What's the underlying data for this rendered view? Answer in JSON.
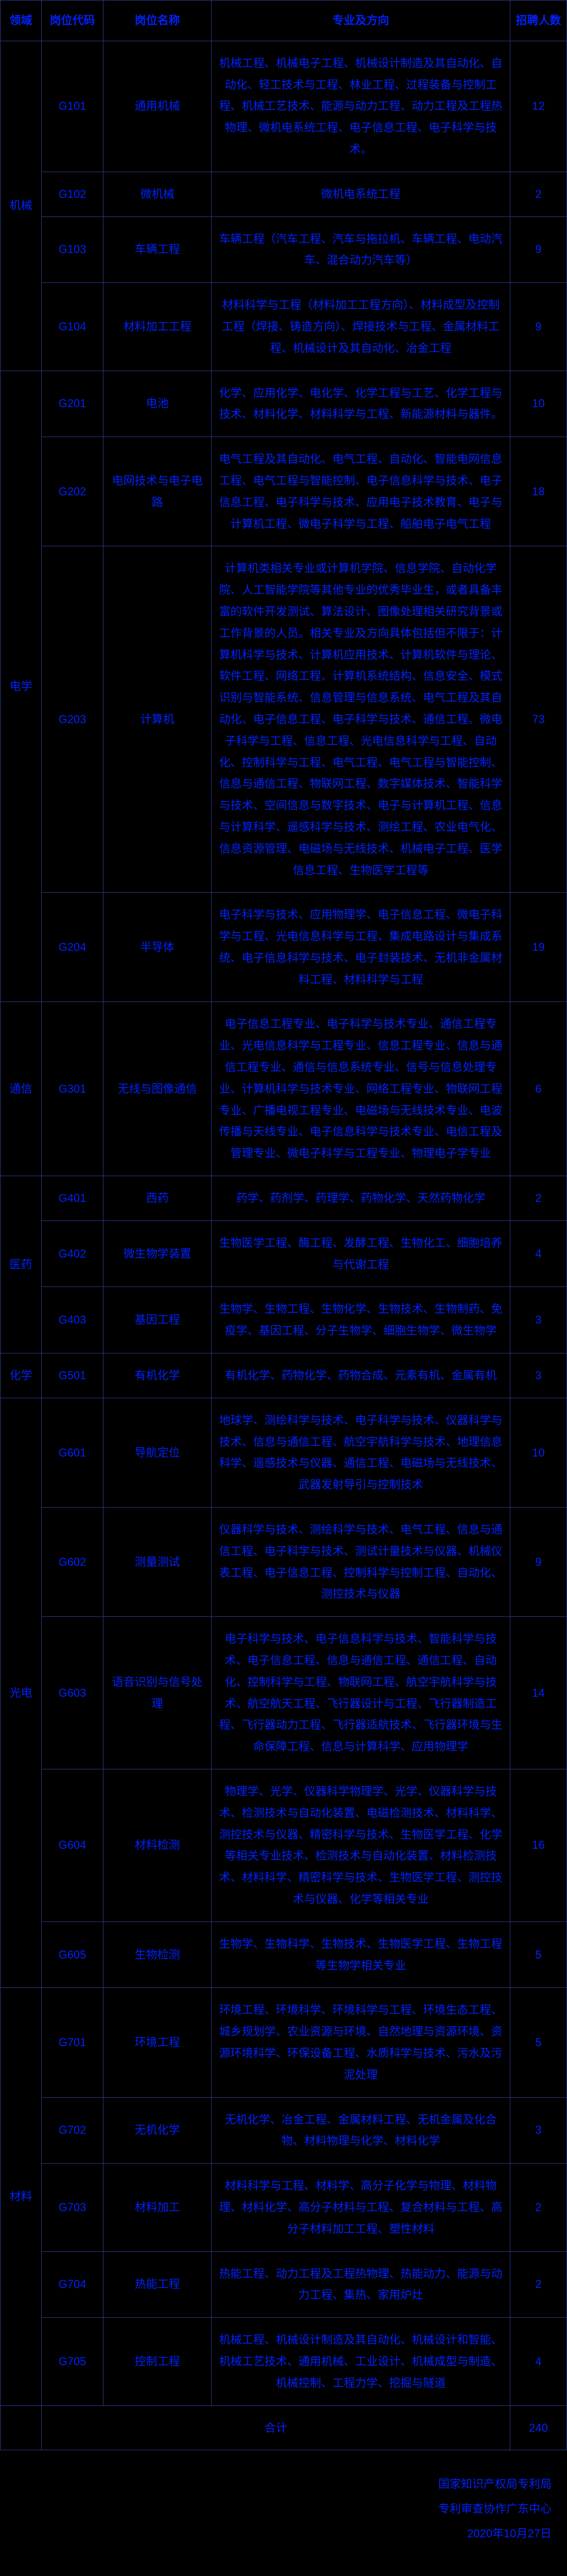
{
  "header": {
    "domain": "领域",
    "code": "岗位代码",
    "post": "岗位名称",
    "major": "专业及方向",
    "count": "招聘人数"
  },
  "domains": [
    {
      "name": "机械",
      "rows": [
        {
          "code": "G101",
          "post": "通用机械",
          "major": "机械工程、机械电子工程、机械设计制造及其自动化、自动化、轻工技术与工程、林业工程、过程装备与控制工程、机械工艺技术、能源与动力工程、动力工程及工程热物理、微机电系统工程、电子信息工程、电子科学与技术。",
          "count": 12
        },
        {
          "code": "G102",
          "post": "微机械",
          "major": "微机电系统工程",
          "count": 2
        },
        {
          "code": "G103",
          "post": "车辆工程",
          "major": "车辆工程（汽车工程、汽车与拖拉机、车辆工程、电动汽车、混合动力汽车等）",
          "count": 9
        },
        {
          "code": "G104",
          "post": "材料加工工程",
          "major": "材料科学与工程（材料加工工程方向）、材料成型及控制工程（焊接、铸造方向）、焊接技术与工程、金属材料工程、机械设计及其自动化、冶金工程",
          "count": 9
        }
      ]
    },
    {
      "name": "电学",
      "rows": [
        {
          "code": "G201",
          "post": "电池",
          "major": "化学、应用化学、电化学、化学工程与工艺、化学工程与技术、材料化学、材料科学与工程、新能源材料与器件。",
          "count": 10
        },
        {
          "code": "G202",
          "post": "电网技术与电子电路",
          "major": "电气工程及其自动化、电气工程、自动化、智能电网信息工程、电气工程与智能控制、电子信息科学与技术、电子信息工程、电子科学与技术、应用电子技术教育、电子与计算机工程、微电子科学与工程、船舶电子电气工程",
          "count": 18
        },
        {
          "code": "G203",
          "post": "计算机",
          "major": "计算机类相关专业或计算机学院、信息学院、自动化学院、人工智能学院等其他专业的优秀毕业生，或者具备丰富的软件开发测试、算法设计、图像处理相关研究背景或工作背景的人员。相关专业及方向具体包括但不限于：计算机科学与技术、计算机应用技术、计算机软件与理论、软件工程、网络工程、计算机系统结构、信息安全、模式识别与智能系统、信息管理与信息系统、电气工程及其自动化、电子信息工程、电子科学与技术、通信工程、微电子科学与工程、信息工程、光电信息科学与工程、自动化、控制科学与工程、电气工程、电气工程与智能控制、信息与通信工程、物联网工程、数字媒体技术、智能科学与技术、空间信息与数字技术、电子与计算机工程、信息与计算科学、遥感科学与技术、测绘工程、农业电气化、信息资源管理、电磁场与无线技术、机械电子工程、医学信息工程、生物医学工程等",
          "count": 73
        },
        {
          "code": "G204",
          "post": "半导体",
          "major": "电子科学与技术、应用物理学、电子信息工程、微电子科学与工程、光电信息科学与工程、集成电路设计与集成系统、电子信息科学与技术、电子封装技术、无机非金属材料工程、材料科学与工程",
          "count": 19
        }
      ]
    },
    {
      "name": "通信",
      "rows": [
        {
          "code": "G301",
          "post": "无线与图像通信",
          "major": "电子信息工程专业、电子科学与技术专业、通信工程专业、光电信息科学与工程专业、信息工程专业、信息与通信工程专业、通信与信息系统专业、信号与信息处理专业、计算机科学与技术专业、网络工程专业、物联网工程专业、广播电视工程专业、电磁场与无线技术专业、电波传播与天线专业、电子信息科学与技术专业、电信工程及管理专业、微电子科学与工程专业、物理电子学专业",
          "count": 6
        }
      ]
    },
    {
      "name": "医药",
      "rows": [
        {
          "code": "G401",
          "post": "西药",
          "major": "药学、药剂学、药理学、药物化学、天然药物化学",
          "count": 2
        },
        {
          "code": "G402",
          "post": "微生物学装置",
          "major": "生物医学工程、酶工程、发酵工程、生物化工、细胞培养与代谢工程",
          "count": 4
        },
        {
          "code": "G403",
          "post": "基因工程",
          "major": "生物学、生物工程、生物化学、生物技术、生物制药、免疫学、基因工程、分子生物学、细胞生物学、微生物学",
          "count": 3
        }
      ]
    },
    {
      "name": "化学",
      "rows": [
        {
          "code": "G501",
          "post": "有机化学",
          "major": "有机化学、药物化学、药物合成、元素有机、金属有机",
          "count": 3
        }
      ]
    },
    {
      "name": "光电",
      "rows": [
        {
          "code": "G601",
          "post": "导航定位",
          "major": "地球学、测绘科学与技术、电子科学与技术、仪器科学与技术、信息与通信工程、航空宇航科学与技术、地理信息科学、遥感技术与仪器、通信工程、电磁场与无线技术、武器发射导引与控制技术",
          "count": 10
        },
        {
          "code": "G602",
          "post": "测量测试",
          "major": "仪器科学与技术、测绘科学与技术、电气工程、信息与通信工程、电子科学与技术、测试计量技术与仪器、机械仪表工程、电子信息工程、控制科学与控制工程、自动化、测控技术与仪器",
          "count": 9
        },
        {
          "code": "G603",
          "post": "语音识别与信号处理",
          "major": "电子科学与技术、电子信息科学与技术、智能科学与技术、电子信息工程、信息与通信工程、通信工程、自动化、控制科学与工程、物联网工程、航空宇航科学与技术、航空航天工程、飞行器设计与工程、飞行器制造工程、飞行器动力工程、飞行器适航技术、飞行器环境与生命保障工程、信息与计算科学、应用物理学",
          "count": 14
        },
        {
          "code": "G604",
          "post": "材料检测",
          "major": "物理学、光学、仪器科学物理学、光学、仪器科学与技术、检测技术与自动化装置、电磁检测技术、材料科学、测控技术与仪器、精密科学与技术、生物医学工程、化学等相关专业技术、检测技术与自动化装置、材料检测技术、材料科学、精密科学与技术、生物医学工程、测控技术与仪器、化学等相关专业",
          "count": 16
        },
        {
          "code": "G605",
          "post": "生物检测",
          "major": "生物学、生物科学、生物技术、生物医学工程、生物工程等生物学相关专业",
          "count": 5
        }
      ]
    },
    {
      "name": "材料",
      "rows": [
        {
          "code": "G701",
          "post": "环境工程",
          "major": "环境工程、环境科学、环境科学与工程、环境生态工程、城乡规划学、农业资源与环境、自然地理与资源环境、资源环境科学、环保设备工程、水质科学与技术、污水及污泥处理",
          "count": 5
        },
        {
          "code": "G702",
          "post": "无机化学",
          "major": "无机化学、冶金工程、金属材料工程、无机金属及化合物、材料物理与化学、材料化学",
          "count": 3
        },
        {
          "code": "G703",
          "post": "材料加工",
          "major": "材料科学与工程、材料学、高分子化学与物理、材料物理、材料化学、高分子材料与工程、复合材料与工程、高分子材料加工工程、塑性材料",
          "count": 2
        },
        {
          "code": "G704",
          "post": "热能工程",
          "major": "热能工程、动力工程及工程热物理、热能动力、能源与动力工程、集热、家用炉灶",
          "count": 2
        },
        {
          "code": "G705",
          "post": "控制工程",
          "major": "机械工程、机械设计制造及其自动化、机械设计和智能、机械工艺技术、通用机械、工业设计、机械成型与制造、机械控制、工程力学、挖掘与隧道",
          "count": 4
        }
      ]
    }
  ],
  "total_label": "合计",
  "total_count": 240,
  "footer": {
    "org1": "国家知识产权局专利局",
    "org2": "专利审查协作广东中心",
    "date": "2020年10月27日"
  }
}
